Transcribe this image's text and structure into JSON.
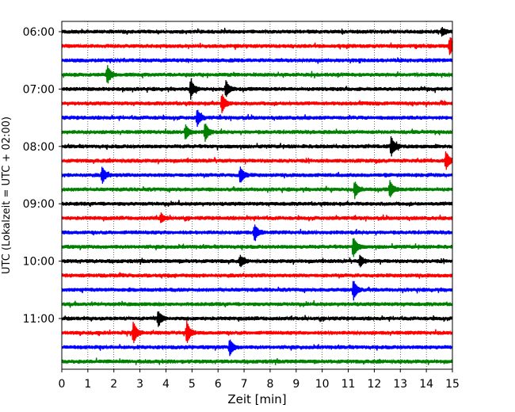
{
  "chart_data": {
    "type": "line",
    "subtype": "helicorder-seismogram",
    "xlabel": "Zeit  [min]",
    "ylabel": "UTC (Lokalzeit = UTC + 02:00)",
    "xlim": [
      0,
      15
    ],
    "x_ticks": [
      "0",
      "1",
      "2",
      "3",
      "4",
      "5",
      "6",
      "7",
      "8",
      "9",
      "10",
      "11",
      "12",
      "13",
      "14",
      "15"
    ],
    "grid": "vertical dotted lines at each minute",
    "y_time_ticks": [
      "06:00",
      "07:00",
      "08:00",
      "09:00",
      "10:00",
      "11:00"
    ],
    "trace_colors": [
      "#000000",
      "#ff0000",
      "#0000ff",
      "#008000"
    ],
    "traces": [
      {
        "start": "06:00",
        "color": "#000000",
        "events": [
          [
            14.6,
            0.4
          ]
        ]
      },
      {
        "start": "06:15",
        "color": "#ff0000",
        "events": [
          [
            14.9,
            1.0
          ]
        ]
      },
      {
        "start": "06:30",
        "color": "#0000ff",
        "events": []
      },
      {
        "start": "06:45",
        "color": "#008000",
        "events": [
          [
            1.75,
            1.0
          ]
        ]
      },
      {
        "start": "07:00",
        "color": "#000000",
        "events": [
          [
            4.95,
            1.0
          ],
          [
            6.3,
            0.9
          ]
        ]
      },
      {
        "start": "07:15",
        "color": "#ff0000",
        "events": [
          [
            6.15,
            1.0
          ]
        ]
      },
      {
        "start": "07:30",
        "color": "#0000ff",
        "events": [
          [
            5.2,
            0.9
          ]
        ]
      },
      {
        "start": "07:45",
        "color": "#008000",
        "events": [
          [
            4.75,
            0.8
          ],
          [
            5.5,
            1.0
          ]
        ]
      },
      {
        "start": "08:00",
        "color": "#000000",
        "events": [
          [
            12.65,
            1.1
          ]
        ]
      },
      {
        "start": "08:15",
        "color": "#ff0000",
        "events": [
          [
            14.75,
            1.0
          ]
        ]
      },
      {
        "start": "08:30",
        "color": "#0000ff",
        "events": [
          [
            1.55,
            0.9
          ],
          [
            6.85,
            0.9
          ]
        ]
      },
      {
        "start": "08:45",
        "color": "#008000",
        "events": [
          [
            11.25,
            0.9
          ],
          [
            12.6,
            0.9
          ]
        ]
      },
      {
        "start": "09:00",
        "color": "#000000",
        "events": []
      },
      {
        "start": "09:15",
        "color": "#ff0000",
        "events": [
          [
            3.8,
            0.5
          ]
        ]
      },
      {
        "start": "09:30",
        "color": "#0000ff",
        "events": [
          [
            7.4,
            0.9
          ]
        ]
      },
      {
        "start": "09:45",
        "color": "#008000",
        "events": [
          [
            11.2,
            1.1
          ]
        ]
      },
      {
        "start": "10:00",
        "color": "#000000",
        "events": [
          [
            6.85,
            0.6
          ],
          [
            11.45,
            0.6
          ]
        ]
      },
      {
        "start": "10:15",
        "color": "#ff0000",
        "events": []
      },
      {
        "start": "10:30",
        "color": "#0000ff",
        "events": [
          [
            11.2,
            1.1
          ]
        ]
      },
      {
        "start": "10:45",
        "color": "#008000",
        "events": []
      },
      {
        "start": "11:00",
        "color": "#000000",
        "events": [
          [
            3.7,
            0.9
          ]
        ]
      },
      {
        "start": "11:15",
        "color": "#ff0000",
        "events": [
          [
            2.75,
            1.2
          ],
          [
            4.8,
            1.2
          ]
        ]
      },
      {
        "start": "11:30",
        "color": "#0000ff",
        "events": [
          [
            6.45,
            0.9
          ]
        ]
      },
      {
        "start": "11:45",
        "color": "#008000",
        "events": []
      }
    ]
  }
}
